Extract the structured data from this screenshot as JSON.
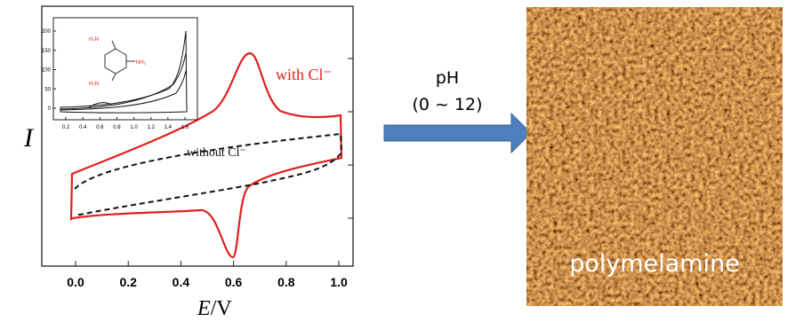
{
  "plot": {
    "y_label": "I",
    "x_label_italic": "E",
    "x_label_unit": "/V",
    "x_ticks": [
      "0.0",
      "0.2",
      "0.4",
      "0.6",
      "0.8",
      "1.0"
    ],
    "annotation_with": "with Cl⁻",
    "annotation_without": "without Cl⁻"
  },
  "inset": {
    "x_ticks": [
      "0.2",
      "0.4",
      "0.6",
      "0.8",
      "1.0",
      "1.2",
      "1.4",
      "1.6"
    ],
    "y_ticks": [
      "0",
      "50",
      "100",
      "150",
      "200"
    ],
    "molecule_labels": [
      "H₂N",
      "NH₂",
      "H₂N"
    ]
  },
  "arrow": {
    "line1": "pH",
    "line2": "(0 ~ 12)"
  },
  "image": {
    "label": "polymelamine"
  }
}
